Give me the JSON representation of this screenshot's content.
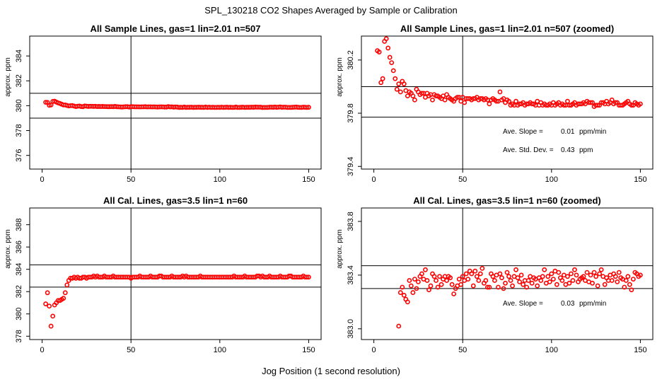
{
  "figure": {
    "title": "SPL_130218  CO2 Shapes Averaged by Sample or Calibration",
    "xlabel": "Jog Position (1 second resolution)"
  },
  "colors": {
    "points": "#ff0000",
    "lines": "#000000"
  },
  "chart_data": [
    {
      "type": "scatter",
      "title": "All Sample Lines, gas=1 lin=2.01 n=507",
      "ylabel": "approx. ppm",
      "xlim": [
        -7,
        157
      ],
      "ylim": [
        374.9,
        385.6
      ],
      "xticks": [
        0,
        50,
        100,
        150
      ],
      "yticks": [
        376,
        378,
        380,
        382,
        384
      ],
      "vline": 50,
      "hlines": [
        379.0,
        381.0
      ],
      "annotations": [],
      "x": [
        2,
        3,
        4,
        5,
        6,
        7,
        8,
        9,
        10,
        11,
        12,
        13,
        14,
        15,
        16,
        17,
        18,
        19,
        20,
        21,
        22,
        23,
        24,
        25,
        26,
        27,
        28,
        29,
        30,
        31,
        32,
        33,
        34,
        35,
        36,
        37,
        38,
        39,
        40,
        41,
        42,
        43,
        44,
        45,
        46,
        47,
        48,
        49,
        50,
        51,
        52,
        53,
        54,
        55,
        56,
        57,
        58,
        59,
        60,
        61,
        62,
        63,
        64,
        65,
        66,
        67,
        68,
        69,
        70,
        71,
        72,
        73,
        74,
        75,
        76,
        77,
        78,
        79,
        80,
        81,
        82,
        83,
        84,
        85,
        86,
        87,
        88,
        89,
        90,
        91,
        92,
        93,
        94,
        95,
        96,
        97,
        98,
        99,
        100,
        101,
        102,
        103,
        104,
        105,
        106,
        107,
        108,
        109,
        110,
        111,
        112,
        113,
        114,
        115,
        116,
        117,
        118,
        119,
        120,
        121,
        122,
        123,
        124,
        125,
        126,
        127,
        128,
        129,
        130,
        131,
        132,
        133,
        134,
        135,
        136,
        137,
        138,
        139,
        140,
        141,
        142,
        143,
        144,
        145,
        146,
        147,
        148,
        149,
        150
      ],
      "y": [
        380.27,
        380.26,
        380.03,
        380.06,
        380.34,
        380.36,
        380.29,
        380.22,
        380.18,
        380.12,
        380.06,
        380.06,
        380.02,
        379.98,
        380.0,
        380.01,
        379.97,
        379.93,
        379.96,
        379.97,
        379.93,
        379.92,
        379.98,
        379.96,
        379.94,
        379.95,
        379.95,
        379.94,
        379.95,
        379.93,
        379.94,
        379.93,
        379.94,
        379.93,
        379.93,
        379.92,
        379.92,
        379.93,
        379.92,
        379.94,
        379.92,
        379.91,
        379.9,
        379.89,
        379.91,
        379.92,
        379.92,
        379.89,
        379.92,
        379.92,
        379.91,
        379.91,
        379.91,
        379.9,
        379.91,
        379.91,
        379.92,
        379.9,
        379.91,
        379.91,
        379.9,
        379.91,
        379.9,
        379.89,
        379.9,
        379.91,
        379.9,
        379.89,
        379.89,
        379.93,
        379.9,
        379.91,
        379.88,
        379.9,
        379.89,
        379.86,
        379.87,
        379.86,
        379.89,
        379.86,
        379.87,
        379.87,
        379.88,
        379.86,
        379.87,
        379.87,
        379.88,
        379.87,
        379.87,
        379.86,
        379.89,
        379.86,
        379.88,
        379.86,
        379.87,
        379.86,
        379.86,
        379.87,
        379.86,
        379.88,
        379.86,
        379.87,
        379.88,
        379.86,
        379.87,
        379.86,
        379.86,
        379.89,
        379.86,
        379.86,
        379.87,
        379.88,
        379.86,
        379.87,
        379.87,
        379.87,
        379.88,
        379.87,
        379.89,
        379.88,
        379.88,
        379.88,
        379.85,
        379.86,
        379.86,
        379.86,
        379.88,
        379.88,
        379.87,
        379.89,
        379.87,
        379.88,
        379.9,
        379.87,
        379.88,
        379.88,
        379.86,
        379.86,
        379.86,
        379.87,
        379.88,
        379.89,
        379.87,
        379.86,
        379.86,
        379.88,
        379.87,
        379.86,
        379.87
      ]
    },
    {
      "type": "scatter",
      "title": "All Sample Lines, gas=1 lin=2.01 n=507 (zoomed)",
      "ylabel": "approx. ppm",
      "xlim": [
        -7,
        157
      ],
      "ylim": [
        379.38,
        380.38
      ],
      "xticks": [
        0,
        50,
        100,
        150
      ],
      "yticks": [
        379.4,
        379.8,
        380.2
      ],
      "vline": 50,
      "hlines": [
        379.77,
        380.0
      ],
      "annotations": [
        {
          "label": "Ave. Slope =",
          "value": "0.01",
          "unit": "ppm/min"
        },
        {
          "label": "Ave. Std. Dev. =",
          "value": "0.43",
          "unit": "ppm"
        }
      ],
      "x": [
        2,
        3,
        4,
        5,
        6,
        7,
        8,
        9,
        10,
        11,
        12,
        13,
        14,
        15,
        16,
        17,
        18,
        19,
        20,
        21,
        22,
        23,
        24,
        25,
        26,
        27,
        28,
        29,
        30,
        31,
        32,
        33,
        34,
        35,
        36,
        37,
        38,
        39,
        40,
        41,
        42,
        43,
        44,
        45,
        46,
        47,
        48,
        49,
        50,
        51,
        52,
        53,
        54,
        55,
        56,
        57,
        58,
        59,
        60,
        61,
        62,
        63,
        64,
        65,
        66,
        67,
        68,
        69,
        70,
        71,
        72,
        73,
        74,
        75,
        76,
        77,
        78,
        79,
        80,
        81,
        82,
        83,
        84,
        85,
        86,
        87,
        88,
        89,
        90,
        91,
        92,
        93,
        94,
        95,
        96,
        97,
        98,
        99,
        100,
        101,
        102,
        103,
        104,
        105,
        106,
        107,
        108,
        109,
        110,
        111,
        112,
        113,
        114,
        115,
        116,
        117,
        118,
        119,
        120,
        121,
        122,
        123,
        124,
        125,
        126,
        127,
        128,
        129,
        130,
        131,
        132,
        133,
        134,
        135,
        136,
        137,
        138,
        139,
        140,
        141,
        142,
        143,
        144,
        145,
        146,
        147,
        148,
        149,
        150
      ],
      "y": [
        380.27,
        380.26,
        380.03,
        380.06,
        380.34,
        380.36,
        380.29,
        380.22,
        380.18,
        380.12,
        380.06,
        379.98,
        380.02,
        379.96,
        380.04,
        380.02,
        379.97,
        379.93,
        379.96,
        379.95,
        379.93,
        379.9,
        379.98,
        379.96,
        379.94,
        379.95,
        379.95,
        379.92,
        379.95,
        379.93,
        379.94,
        379.9,
        379.94,
        379.93,
        379.93,
        379.92,
        379.91,
        379.93,
        379.9,
        379.94,
        379.92,
        379.91,
        379.9,
        379.89,
        379.91,
        379.92,
        379.92,
        379.89,
        379.92,
        379.88,
        379.91,
        379.91,
        379.91,
        379.9,
        379.91,
        379.91,
        379.92,
        379.9,
        379.91,
        379.91,
        379.9,
        379.91,
        379.9,
        379.87,
        379.9,
        379.91,
        379.9,
        379.89,
        379.89,
        379.96,
        379.9,
        379.91,
        379.88,
        379.9,
        379.89,
        379.86,
        379.87,
        379.86,
        379.89,
        379.86,
        379.87,
        379.87,
        379.88,
        379.86,
        379.87,
        379.87,
        379.88,
        379.87,
        379.87,
        379.86,
        379.89,
        379.86,
        379.88,
        379.86,
        379.87,
        379.86,
        379.86,
        379.87,
        379.86,
        379.88,
        379.86,
        379.87,
        379.88,
        379.86,
        379.87,
        379.86,
        379.86,
        379.89,
        379.86,
        379.86,
        379.87,
        379.88,
        379.86,
        379.87,
        379.87,
        379.87,
        379.88,
        379.87,
        379.89,
        379.88,
        379.88,
        379.88,
        379.85,
        379.86,
        379.86,
        379.86,
        379.88,
        379.88,
        379.87,
        379.89,
        379.87,
        379.88,
        379.9,
        379.87,
        379.88,
        379.88,
        379.86,
        379.86,
        379.86,
        379.87,
        379.88,
        379.89,
        379.87,
        379.86,
        379.86,
        379.88,
        379.87,
        379.86,
        379.87
      ]
    },
    {
      "type": "scatter",
      "title": "All Cal. Lines, gas=3.5 lin=1 n=60",
      "ylabel": "approx. ppm",
      "xlim": [
        -7,
        157
      ],
      "ylim": [
        377.7,
        389.5
      ],
      "xticks": [
        0,
        50,
        100,
        150
      ],
      "yticks": [
        378,
        380,
        382,
        384,
        386,
        388
      ],
      "vline": 50,
      "hlines": [
        382.4,
        384.4
      ],
      "annotations": [],
      "x": [
        2,
        3,
        4,
        5,
        6,
        7,
        8,
        9,
        10,
        11,
        12,
        13,
        14,
        15,
        16,
        17,
        18,
        19,
        20,
        21,
        22,
        23,
        24,
        25,
        26,
        27,
        28,
        29,
        30,
        31,
        32,
        33,
        34,
        35,
        36,
        37,
        38,
        39,
        40,
        41,
        42,
        43,
        44,
        45,
        46,
        47,
        48,
        49,
        50,
        51,
        52,
        53,
        54,
        55,
        56,
        57,
        58,
        59,
        60,
        61,
        62,
        63,
        64,
        65,
        66,
        67,
        68,
        69,
        70,
        71,
        72,
        73,
        74,
        75,
        76,
        77,
        78,
        79,
        80,
        81,
        82,
        83,
        84,
        85,
        86,
        87,
        88,
        89,
        90,
        91,
        92,
        93,
        94,
        95,
        96,
        97,
        98,
        99,
        100,
        101,
        102,
        103,
        104,
        105,
        106,
        107,
        108,
        109,
        110,
        111,
        112,
        113,
        114,
        115,
        116,
        117,
        118,
        119,
        120,
        121,
        122,
        123,
        124,
        125,
        126,
        127,
        128,
        129,
        130,
        131,
        132,
        133,
        134,
        135,
        136,
        137,
        138,
        139,
        140,
        141,
        142,
        143,
        144,
        145,
        146,
        147,
        148,
        149,
        150
      ],
      "y": [
        380.9,
        381.9,
        380.7,
        378.9,
        379.8,
        380.8,
        381.0,
        381.2,
        381.2,
        381.3,
        381.4,
        381.9,
        382.6,
        383.0,
        383.2,
        383.2,
        383.3,
        383.2,
        383.3,
        383.2,
        383.2,
        383.3,
        383.3,
        383.2,
        383.3,
        383.3,
        383.3,
        383.4,
        383.3,
        383.4,
        383.3,
        383.3,
        383.3,
        383.4,
        383.3,
        383.3,
        383.3,
        383.3,
        383.4,
        383.3,
        383.3,
        383.3,
        383.3,
        383.3,
        383.3,
        383.3,
        383.3,
        383.3,
        383.2,
        383.3,
        383.3,
        383.3,
        383.3,
        383.4,
        383.3,
        383.3,
        383.3,
        383.3,
        383.3,
        383.4,
        383.3,
        383.3,
        383.3,
        383.3,
        383.4,
        383.4,
        383.3,
        383.3,
        383.3,
        383.3,
        383.3,
        383.4,
        383.3,
        383.3,
        383.3,
        383.3,
        383.3,
        383.4,
        383.3,
        383.4,
        383.3,
        383.3,
        383.3,
        383.3,
        383.3,
        383.3,
        383.3,
        383.4,
        383.3,
        383.3,
        383.3,
        383.3,
        383.3,
        383.3,
        383.3,
        383.3,
        383.3,
        383.3,
        383.3,
        383.3,
        383.3,
        383.3,
        383.3,
        383.3,
        383.3,
        383.3,
        383.4,
        383.3,
        383.3,
        383.3,
        383.3,
        383.3,
        383.4,
        383.3,
        383.3,
        383.3,
        383.3,
        383.3,
        383.3,
        383.4,
        383.4,
        383.3,
        383.4,
        383.3,
        383.3,
        383.3,
        383.4,
        383.3,
        383.3,
        383.3,
        383.3,
        383.3,
        383.4,
        383.3,
        383.3,
        383.3,
        383.3,
        383.4,
        383.4,
        383.3,
        383.3,
        383.3,
        383.3,
        383.3,
        383.3,
        383.4,
        383.3,
        383.3,
        383.3
      ]
    },
    {
      "type": "scatter",
      "title": "All Cal. Lines, gas=3.5 lin=1 n=60 (zoomed)",
      "ylabel": "approx. ppm",
      "xlim": [
        -7,
        157
      ],
      "ylim": [
        382.92,
        383.9
      ],
      "xticks": [
        0,
        50,
        100,
        150
      ],
      "yticks": [
        383.0,
        383.4,
        383.8
      ],
      "vline": 50,
      "hlines": [
        383.3,
        383.47
      ],
      "annotations": [
        {
          "label": "Ave. Slope =",
          "value": "0.03",
          "unit": "ppm/min"
        }
      ],
      "x": [
        14,
        15,
        16,
        17,
        18,
        19,
        20,
        21,
        22,
        23,
        24,
        25,
        26,
        27,
        28,
        29,
        30,
        31,
        32,
        33,
        34,
        35,
        36,
        37,
        38,
        39,
        40,
        41,
        42,
        43,
        44,
        45,
        46,
        47,
        48,
        49,
        50,
        51,
        52,
        53,
        54,
        55,
        56,
        57,
        58,
        59,
        60,
        61,
        62,
        63,
        64,
        65,
        66,
        67,
        68,
        69,
        70,
        71,
        72,
        73,
        74,
        75,
        76,
        77,
        78,
        79,
        80,
        81,
        82,
        83,
        84,
        85,
        86,
        87,
        88,
        89,
        90,
        91,
        92,
        93,
        94,
        95,
        96,
        97,
        98,
        99,
        100,
        101,
        102,
        103,
        104,
        105,
        106,
        107,
        108,
        109,
        110,
        111,
        112,
        113,
        114,
        115,
        116,
        117,
        118,
        119,
        120,
        121,
        122,
        123,
        124,
        125,
        126,
        127,
        128,
        129,
        130,
        131,
        132,
        133,
        134,
        135,
        136,
        137,
        138,
        139,
        140,
        141,
        142,
        143,
        144,
        145,
        146,
        147,
        148,
        149,
        150
      ],
      "y": [
        383.02,
        383.27,
        383.31,
        383.25,
        383.22,
        383.2,
        383.36,
        383.32,
        383.27,
        383.37,
        383.3,
        383.35,
        383.39,
        383.41,
        383.37,
        383.44,
        383.36,
        383.29,
        383.32,
        383.41,
        383.39,
        383.36,
        383.31,
        383.39,
        383.33,
        383.37,
        383.39,
        383.36,
        383.39,
        383.38,
        383.33,
        383.26,
        383.3,
        383.32,
        383.37,
        383.33,
        383.39,
        383.36,
        383.41,
        383.37,
        383.43,
        383.41,
        383.32,
        383.43,
        383.39,
        383.36,
        383.41,
        383.45,
        383.34,
        383.36,
        383.31,
        383.31,
        383.41,
        383.39,
        383.36,
        383.4,
        383.31,
        383.41,
        383.38,
        383.3,
        383.34,
        383.42,
        383.39,
        383.36,
        383.32,
        383.39,
        383.44,
        383.38,
        383.35,
        383.4,
        383.33,
        383.36,
        383.31,
        383.36,
        383.39,
        383.34,
        383.38,
        383.37,
        383.32,
        383.38,
        383.36,
        383.39,
        383.44,
        383.34,
        383.39,
        383.35,
        383.41,
        383.37,
        383.43,
        383.33,
        383.42,
        383.38,
        383.36,
        383.4,
        383.33,
        383.39,
        383.34,
        383.41,
        383.36,
        383.44,
        383.4,
        383.35,
        383.37,
        383.38,
        383.39,
        383.36,
        383.42,
        383.35,
        383.4,
        383.34,
        383.42,
        383.39,
        383.32,
        383.41,
        383.44,
        383.39,
        383.33,
        383.38,
        383.36,
        383.4,
        383.36,
        383.41,
        383.39,
        383.35,
        383.42,
        383.38,
        383.37,
        383.31,
        383.36,
        383.39,
        383.33,
        383.29,
        383.37,
        383.42,
        383.41,
        383.39,
        383.4
      ]
    }
  ]
}
